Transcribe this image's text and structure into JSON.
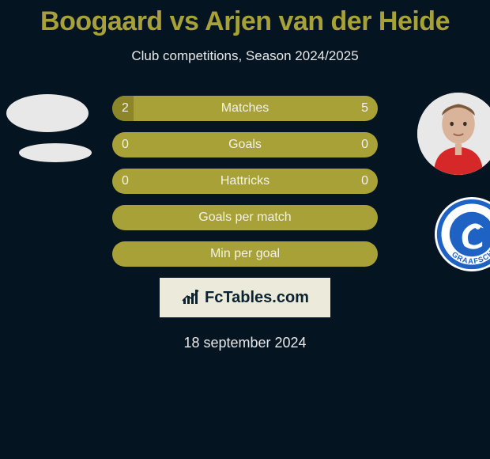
{
  "title": "Boogaard vs Arjen van der Heide",
  "subtitle": "Club competitions, Season 2024/2025",
  "date": "18 september 2024",
  "logo_text": "FcTables.com",
  "colors": {
    "background": "#041421",
    "title": "#a8a137",
    "bar_bg": "#a8a137",
    "bar_fill": "#8c8629",
    "text_light": "#e8e8e8",
    "bar_text": "#f2f2e8",
    "logo_bg": "#eceadb",
    "logo_text": "#0b2230"
  },
  "bars": [
    {
      "label": "Matches",
      "left": "2",
      "right": "5",
      "fill_left_pct": 8,
      "fill_right_pct": 0
    },
    {
      "label": "Goals",
      "left": "0",
      "right": "0",
      "fill_left_pct": 0,
      "fill_right_pct": 0
    },
    {
      "label": "Hattricks",
      "left": "0",
      "right": "0",
      "fill_left_pct": 0,
      "fill_right_pct": 0
    },
    {
      "label": "Goals per match",
      "left": "",
      "right": "",
      "fill_left_pct": 0,
      "fill_right_pct": 0
    },
    {
      "label": "Min per goal",
      "left": "",
      "right": "",
      "fill_left_pct": 0,
      "fill_right_pct": 0
    }
  ],
  "club_right_name": "DE GRAAFSCHAP"
}
